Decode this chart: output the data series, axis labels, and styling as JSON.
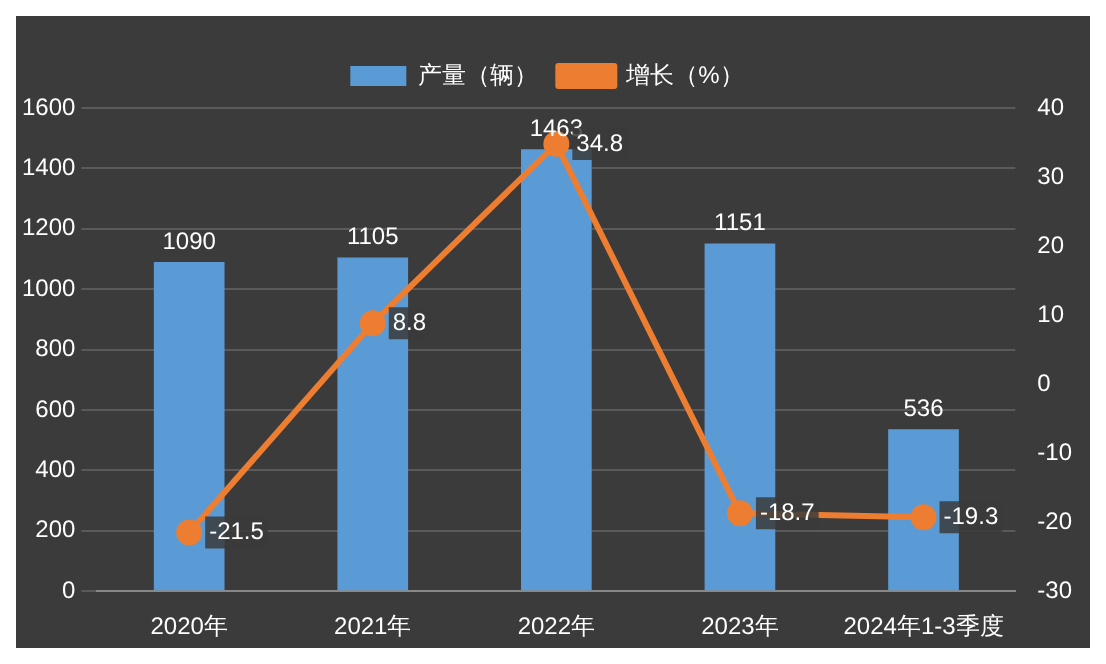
{
  "chart_data": {
    "type": "bar",
    "categories": [
      "2020年",
      "2021年",
      "2022年",
      "2023年",
      "2024年1-3季度"
    ],
    "series": [
      {
        "name": "产量（辆）",
        "color": "#5b9bd5",
        "values": [
          1090,
          1105,
          1463,
          1151,
          536
        ]
      },
      {
        "name": "增长（%）",
        "type": "line",
        "axis": "y2",
        "color": "#ed7d31",
        "values": [
          -21.5,
          8.8,
          34.8,
          -18.7,
          -19.3
        ]
      }
    ],
    "ylim": [
      0,
      1600
    ],
    "yticks": [
      0,
      200,
      400,
      600,
      800,
      1000,
      1200,
      1400,
      1600
    ],
    "y2lim": [
      -30,
      40
    ],
    "y2ticks": [
      -30,
      -20,
      -10,
      0,
      10,
      20,
      30,
      40
    ],
    "grid": "y",
    "legend": "top",
    "marker": "circle",
    "data_labels": true
  }
}
